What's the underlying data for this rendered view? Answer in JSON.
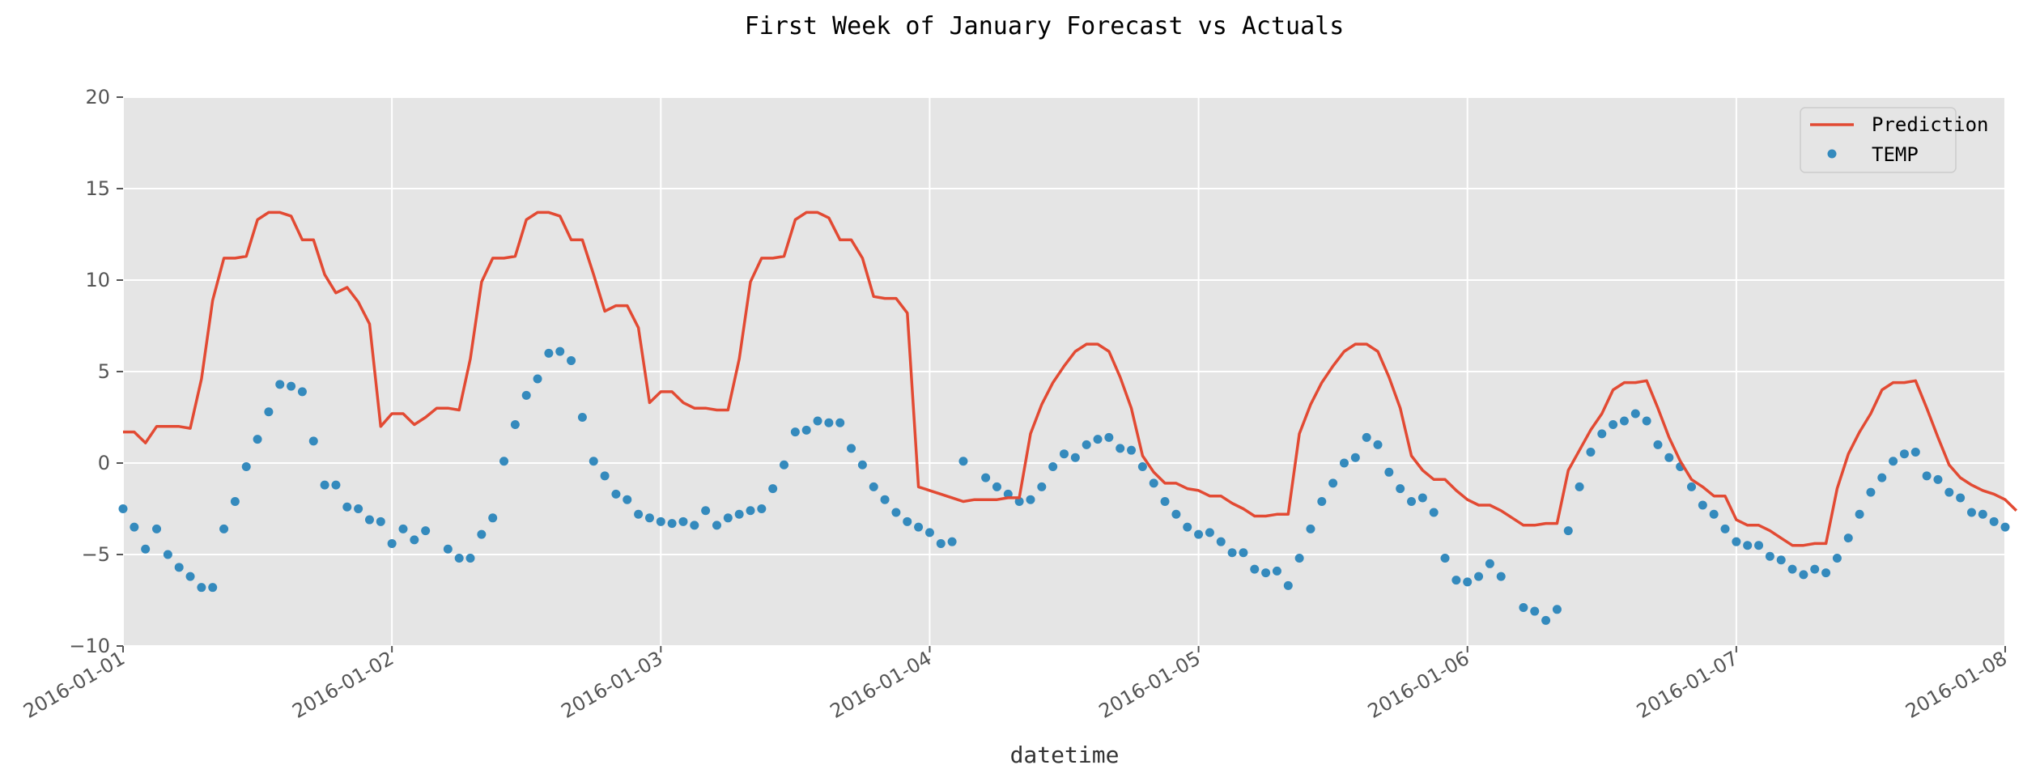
{
  "chart_data": {
    "type": "line",
    "title": "First Week of January Forecast vs Actuals",
    "xlabel": "datetime",
    "ylabel": "",
    "ylim": [
      -10,
      20
    ],
    "xlim": [
      0,
      7
    ],
    "yticks": [
      "−10",
      "−5",
      "0",
      "5",
      "10",
      "15",
      "20"
    ],
    "ytick_values": [
      -10,
      -5,
      0,
      5,
      10,
      15,
      20
    ],
    "xticks": [
      "2016-01-01",
      "2016-01-02",
      "2016-01-03",
      "2016-01-04",
      "2016-01-05",
      "2016-01-06",
      "2016-01-07",
      "2016-01-08"
    ],
    "grid": true,
    "legend_position": "top-right",
    "colors": {
      "prediction": "#E24A33",
      "temp": "#348ABD",
      "background": "#E5E5E5",
      "grid": "#FFFFFF"
    },
    "series": [
      {
        "name": "Prediction",
        "style": "line",
        "x_unit": "days since 2016-01-01 (hourly)",
        "values": [
          1.7,
          1.7,
          1.1,
          2.0,
          2.0,
          2.0,
          1.9,
          4.6,
          8.9,
          11.2,
          11.2,
          11.3,
          13.3,
          13.7,
          13.7,
          13.5,
          12.2,
          12.2,
          10.3,
          9.3,
          9.6,
          8.8,
          7.6,
          2.0,
          2.7,
          2.7,
          2.1,
          2.5,
          3.0,
          3.0,
          2.9,
          5.7,
          9.9,
          11.2,
          11.2,
          11.3,
          13.3,
          13.7,
          13.7,
          13.5,
          12.2,
          12.2,
          10.3,
          8.3,
          8.6,
          8.6,
          7.4,
          3.3,
          3.9,
          3.9,
          3.3,
          3.0,
          3.0,
          2.9,
          2.9,
          5.7,
          9.9,
          11.2,
          11.2,
          11.3,
          13.3,
          13.7,
          13.7,
          13.4,
          12.2,
          12.2,
          11.2,
          9.1,
          9.0,
          9.0,
          8.2,
          -1.3,
          -1.5,
          -1.7,
          -1.9,
          -2.1,
          -2.0,
          -2.0,
          -2.0,
          -1.9,
          -1.9,
          1.6,
          3.2,
          4.4,
          5.3,
          6.1,
          6.5,
          6.5,
          6.1,
          4.7,
          3.0,
          0.4,
          -0.5,
          -1.1,
          -1.1,
          -1.4,
          -1.5,
          -1.8,
          -1.8,
          -2.2,
          -2.5,
          -2.9,
          -2.9,
          -2.8,
          -2.8,
          1.6,
          3.2,
          4.4,
          5.3,
          6.1,
          6.5,
          6.5,
          6.1,
          4.7,
          3.0,
          0.4,
          -0.4,
          -0.9,
          -0.9,
          -1.5,
          -2.0,
          -2.3,
          -2.3,
          -2.6,
          -3.0,
          -3.4,
          -3.4,
          -3.3,
          -3.3,
          -0.4,
          0.7,
          1.8,
          2.7,
          4.0,
          4.4,
          4.4,
          4.5,
          3.0,
          1.4,
          0.1,
          -0.9,
          -1.3,
          -1.8,
          -1.8,
          -3.1,
          -3.4,
          -3.4,
          -3.7,
          -4.1,
          -4.5,
          -4.5,
          -4.4,
          -4.4,
          -1.4,
          0.5,
          1.7,
          2.7,
          4.0,
          4.4,
          4.4,
          4.5,
          3.0,
          1.4,
          -0.1,
          -0.8,
          -1.2,
          -1.5,
          -1.7,
          -2.0,
          -2.6
        ]
      },
      {
        "name": "TEMP",
        "style": "points",
        "x_unit": "days since 2016-01-01 (hourly)",
        "values": [
          -2.5,
          -3.5,
          -4.7,
          -3.6,
          -5.0,
          -5.7,
          -6.2,
          -6.8,
          -6.8,
          -3.6,
          -2.1,
          -0.2,
          1.3,
          2.8,
          4.3,
          4.2,
          3.9,
          1.2,
          -1.2,
          -1.2,
          -2.4,
          -2.5,
          -3.1,
          -3.2,
          -4.4,
          -3.6,
          -4.2,
          -3.7,
          null,
          -4.7,
          -5.2,
          -5.2,
          -3.9,
          -3.0,
          0.1,
          2.1,
          3.7,
          4.6,
          6.0,
          6.1,
          5.6,
          2.5,
          0.1,
          -0.7,
          -1.7,
          -2.0,
          -2.8,
          -3.0,
          -3.2,
          -3.3,
          -3.2,
          -3.4,
          -2.6,
          -3.4,
          -3.0,
          -2.8,
          -2.6,
          -2.5,
          -1.4,
          -0.1,
          1.7,
          1.8,
          2.3,
          2.2,
          2.2,
          0.8,
          -0.1,
          -1.3,
          -2.0,
          -2.7,
          -3.2,
          -3.5,
          -3.8,
          -4.4,
          -4.3,
          0.1,
          null,
          -0.8,
          -1.3,
          -1.7,
          -2.1,
          -2.0,
          -1.3,
          -0.2,
          0.5,
          0.3,
          1.0,
          1.3,
          1.4,
          0.8,
          0.7,
          -0.2,
          -1.1,
          -2.1,
          -2.8,
          -3.5,
          -3.9,
          -3.8,
          -4.3,
          -4.9,
          -4.9,
          -5.8,
          -6.0,
          -5.9,
          -6.7,
          -5.2,
          -3.6,
          -2.1,
          -1.1,
          0.0,
          0.3,
          1.4,
          1.0,
          -0.5,
          -1.4,
          -2.1,
          -1.9,
          -2.7,
          -5.2,
          -6.4,
          -6.5,
          -6.2,
          -5.5,
          -6.2,
          null,
          -7.9,
          -8.1,
          -8.6,
          -8.0,
          -3.7,
          -1.3,
          0.6,
          1.6,
          2.1,
          2.3,
          2.7,
          2.3,
          1.0,
          0.3,
          -0.2,
          -1.3,
          -2.3,
          -2.8,
          -3.6,
          -4.3,
          -4.5,
          -4.5,
          -5.1,
          -5.3,
          -5.8,
          -6.1,
          -5.8,
          -6.0,
          -5.2,
          -4.1,
          -2.8,
          -1.6,
          -0.8,
          0.1,
          0.5,
          0.6,
          -0.7,
          -0.9,
          -1.6,
          -1.9,
          -2.7,
          -2.8,
          -3.2,
          -3.5
        ]
      }
    ],
    "legend": [
      {
        "label": "Prediction",
        "marker": "line"
      },
      {
        "label": "TEMP",
        "marker": "dot"
      }
    ]
  }
}
